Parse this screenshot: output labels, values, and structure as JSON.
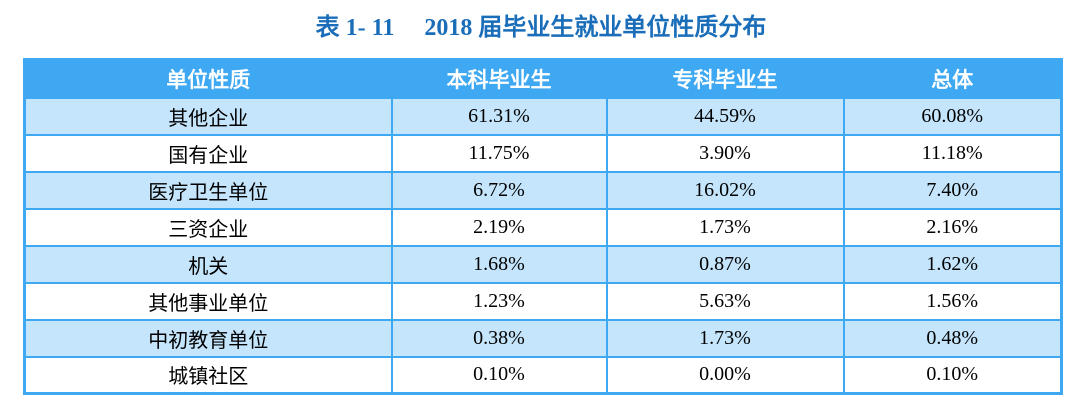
{
  "title": {
    "label": "表 1- 11",
    "caption": "2018 届毕业生就业单位性质分布"
  },
  "colors": {
    "header_and_border_blue": "#3ea8f2",
    "striped_row_light_blue": "#c4e5fb",
    "title_blue": "#1a6db8",
    "header_text": "#ffffff",
    "body_text": "#000000"
  },
  "table": {
    "headers": [
      "单位性质",
      "本科毕业生",
      "专科毕业生",
      "总体"
    ],
    "rows": [
      {
        "category": "其他企业",
        "undergrad": "61.31%",
        "college": "44.59%",
        "overall": "60.08%"
      },
      {
        "category": "国有企业",
        "undergrad": "11.75%",
        "college": "3.90%",
        "overall": "11.18%"
      },
      {
        "category": "医疗卫生单位",
        "undergrad": "6.72%",
        "college": "16.02%",
        "overall": "7.40%"
      },
      {
        "category": "三资企业",
        "undergrad": "2.19%",
        "college": "1.73%",
        "overall": "2.16%"
      },
      {
        "category": "机关",
        "undergrad": "1.68%",
        "college": "0.87%",
        "overall": "1.62%"
      },
      {
        "category": "其他事业单位",
        "undergrad": "1.23%",
        "college": "5.63%",
        "overall": "1.56%"
      },
      {
        "category": "中初教育单位",
        "undergrad": "0.38%",
        "college": "1.73%",
        "overall": "0.48%"
      },
      {
        "category": "城镇社区",
        "undergrad": "0.10%",
        "college": "0.00%",
        "overall": "0.10%"
      }
    ]
  }
}
